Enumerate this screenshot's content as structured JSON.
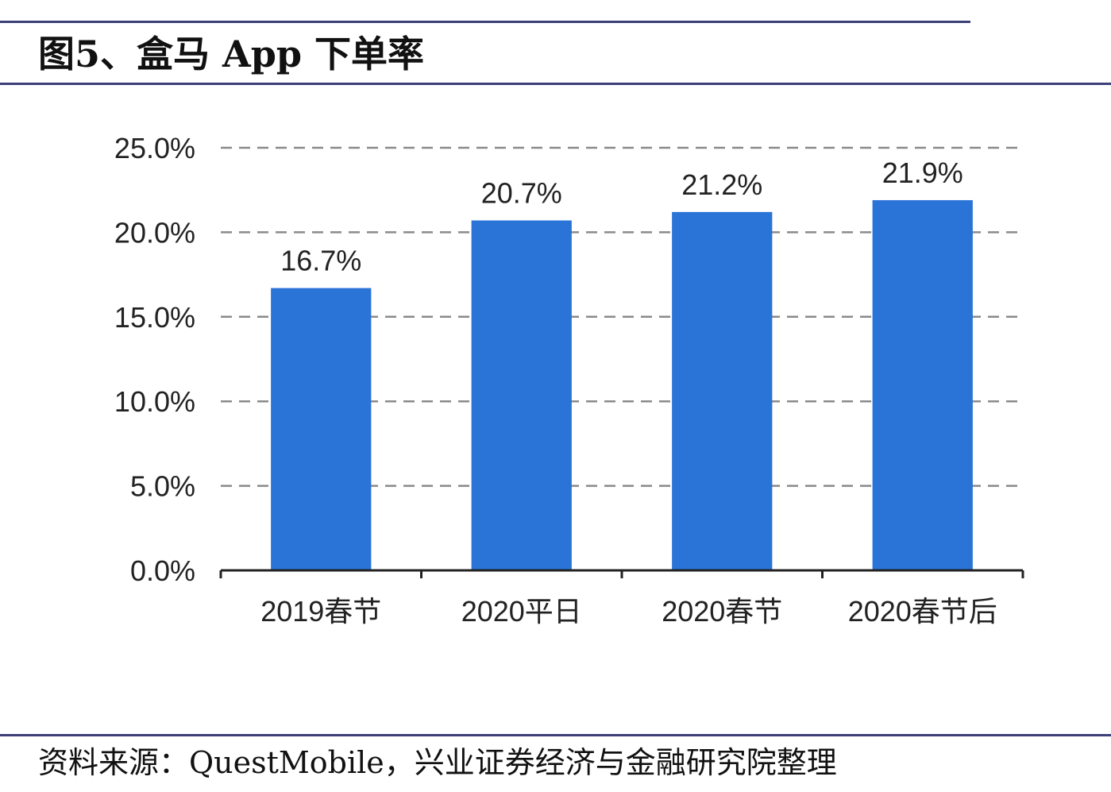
{
  "header": {
    "title": "图5、盒马 App 下单率"
  },
  "footer": {
    "source": "资料来源：QuestMobile，兴业证券经济与金融研究院整理"
  },
  "chart_data": {
    "type": "bar",
    "categories": [
      "2019春节",
      "2020平日",
      "2020春节",
      "2020春节后"
    ],
    "values": [
      16.7,
      20.7,
      21.2,
      21.9
    ],
    "data_labels": [
      "16.7%",
      "20.7%",
      "21.2%",
      "21.9%"
    ],
    "yticks": [
      "0.0%",
      "5.0%",
      "10.0%",
      "15.0%",
      "20.0%",
      "25.0%"
    ],
    "ylim": [
      0,
      25
    ],
    "ytick_step": 5,
    "grid": "dashed-horizontal",
    "legend": "none",
    "bar_color": "#2a74d8",
    "title": "",
    "xlabel": "",
    "ylabel": ""
  }
}
